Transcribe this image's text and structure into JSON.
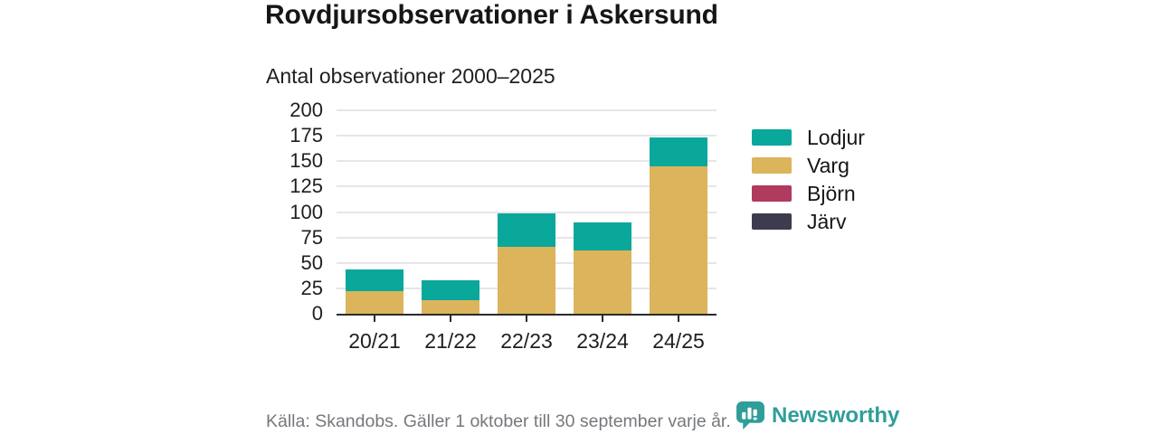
{
  "title": "Rovdjursobservationer i Askersund",
  "subtitle": "Antal observationer 2000–2025",
  "footer": {
    "source": "Källa: Skandobs. Gäller 1 oktober till 30 september varje år.",
    "brand": "Newsworthy"
  },
  "colors": {
    "lodjur_teal": "#0aa79b",
    "varg_gold": "#dcb45c",
    "bjorn_crimson": "#b13b5e",
    "jarv_dark": "#3c3c4e",
    "brand_teal": "#2f9e98",
    "axis": "#2b2b2b",
    "grid": "#e6e6e8",
    "text_dark": "#161616",
    "text_gray": "#75787c"
  },
  "chart_data": {
    "type": "bar",
    "stacked": true,
    "title": "Antal observationer 2000–2025",
    "categories": [
      "20/21",
      "21/22",
      "22/23",
      "23/24",
      "24/25"
    ],
    "series": [
      {
        "name": "Lodjur",
        "color": "#0aa79b",
        "values": [
          22,
          20,
          33,
          28,
          28
        ]
      },
      {
        "name": "Varg",
        "color": "#dcb45c",
        "values": [
          22,
          13,
          66,
          62,
          145
        ]
      },
      {
        "name": "Björn",
        "color": "#b13b5e",
        "values": [
          0,
          0,
          0,
          0,
          0
        ]
      },
      {
        "name": "Järv",
        "color": "#3c3c4e",
        "values": [
          0,
          0,
          0,
          0,
          0
        ]
      }
    ],
    "totals": [
      44,
      33,
      99,
      90,
      173
    ],
    "xlabel": "",
    "ylabel": "",
    "ylim": [
      0,
      200
    ],
    "yticks": [
      0,
      25,
      50,
      75,
      100,
      125,
      150,
      175,
      200
    ],
    "grid": true,
    "legend_position": "right"
  }
}
